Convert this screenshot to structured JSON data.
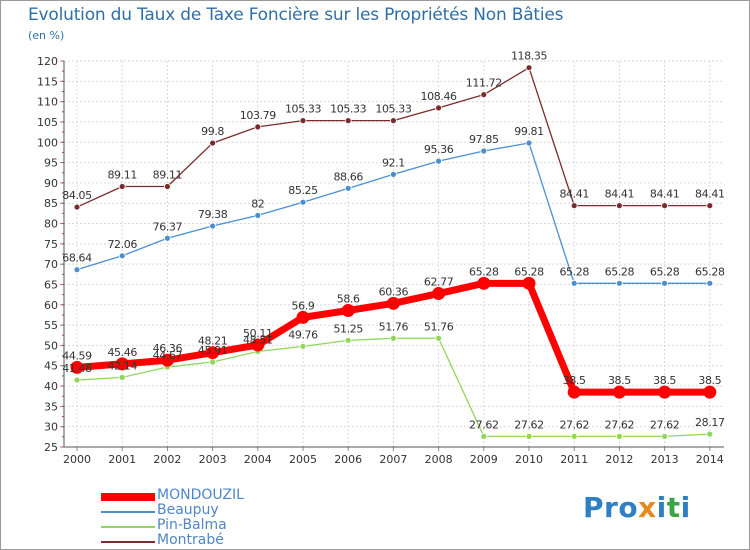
{
  "chart_data": {
    "type": "line",
    "title": "Evolution du Taux de Taxe Foncière sur les Propriétés Non Bâties",
    "ylabel": "(en %)",
    "xlabel": "",
    "ylim": [
      25,
      120
    ],
    "yticks": [
      25,
      30,
      35,
      40,
      45,
      50,
      55,
      60,
      65,
      70,
      75,
      80,
      85,
      90,
      95,
      100,
      105,
      110,
      115,
      120
    ],
    "x": [
      "2000",
      "2001",
      "2002",
      "2003",
      "2004",
      "2005",
      "2006",
      "2007",
      "2008",
      "2009",
      "2010",
      "2011",
      "2012",
      "2013",
      "2014"
    ],
    "grid": true,
    "series": [
      {
        "name": "MONDOUZIL",
        "color": "#ff0000",
        "values": [
          44.59,
          45.46,
          46.36,
          48.21,
          50.11,
          56.9,
          58.6,
          60.36,
          62.77,
          65.28,
          65.28,
          38.5,
          38.5,
          38.5,
          38.5
        ],
        "labels": [
          "44.59",
          "45.46",
          "46.36",
          "48.21",
          "50.11",
          "56.9",
          "58.6",
          "60.36",
          "62.77",
          "65.28",
          "65.28",
          "38.5",
          "38.5",
          "38.5",
          "38.5"
        ]
      },
      {
        "name": "Beaupuy",
        "color": "#4a8fd0",
        "values": [
          68.64,
          72.06,
          76.37,
          79.38,
          82,
          85.25,
          88.66,
          92.1,
          95.36,
          97.85,
          99.81,
          65.28,
          65.28,
          65.28,
          65.28
        ],
        "labels": [
          "68.64",
          "72.06",
          "76.37",
          "79.38",
          "82",
          "85.25",
          "88.66",
          "92.1",
          "95.36",
          "97.85",
          "99.81",
          "65.28",
          "65.28",
          "65.28",
          "65.28"
        ]
      },
      {
        "name": "Pin-Balma",
        "color": "#8fd65a",
        "values": [
          41.48,
          42.14,
          44.67,
          45.91,
          48.51,
          49.76,
          51.25,
          51.76,
          51.76,
          27.62,
          27.62,
          27.62,
          27.62,
          27.62,
          28.17
        ],
        "labels": [
          "41.48",
          "42.14",
          "44.67",
          "45.91",
          "48.51",
          "49.76",
          "51.25",
          "51.76",
          "51.76",
          "27.62",
          "27.62",
          "27.62",
          "27.62",
          "27.62",
          "28.17"
        ]
      },
      {
        "name": "Montrabé",
        "color": "#7a2b2b",
        "values": [
          84.05,
          89.11,
          89.11,
          99.8,
          103.79,
          105.33,
          105.33,
          105.33,
          108.46,
          111.72,
          118.35,
          84.41,
          84.41,
          84.41,
          84.41
        ],
        "labels": [
          "84.05",
          "89.11",
          "89.11",
          "99.8",
          "103.79",
          "105.33",
          "105.33",
          "105.33",
          "108.46",
          "111.72",
          "118.35",
          "84.41",
          "84.41",
          "84.41",
          "84.41"
        ]
      }
    ]
  },
  "legend": {
    "items": [
      "MONDOUZIL",
      "Beaupuy",
      "Pin-Balma",
      "Montrabé"
    ]
  },
  "logo": {
    "text": "Proxiti",
    "colors": [
      "#2e7fc4",
      "#2e7fc4",
      "#2e7fc4",
      "#e58a1f",
      "#2e7fc4",
      "#3aa544",
      "#2e7fc4"
    ]
  }
}
